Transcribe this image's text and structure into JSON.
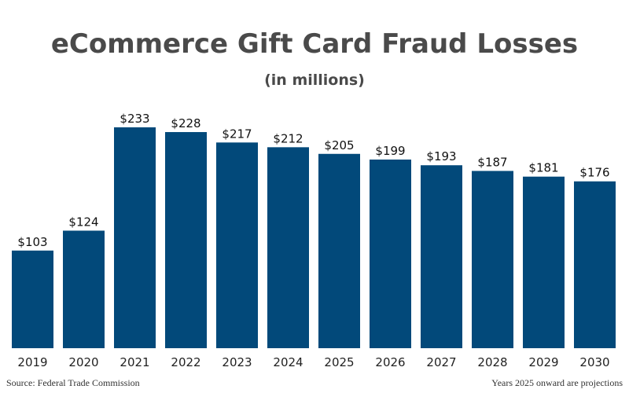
{
  "chart_data": {
    "type": "bar",
    "title": "eCommerce Gift Card Fraud Losses",
    "subtitle": "(in millions)",
    "categories": [
      "2019",
      "2020",
      "2021",
      "2022",
      "2023",
      "2024",
      "2025",
      "2026",
      "2027",
      "2028",
      "2029",
      "2030"
    ],
    "values": [
      103,
      124,
      233,
      228,
      217,
      212,
      205,
      199,
      193,
      187,
      181,
      176
    ],
    "data_labels": [
      "$103",
      "$124",
      "$233",
      "$228",
      "$217",
      "$212",
      "$205",
      "$199",
      "$193",
      "$187",
      "$181",
      "$176"
    ],
    "ylim": [
      0,
      233
    ],
    "grid": false,
    "bar_color": "#02497a"
  },
  "footer": {
    "source": "Source: Federal Trade Commission",
    "note": "Years 2025 onward are projections"
  }
}
